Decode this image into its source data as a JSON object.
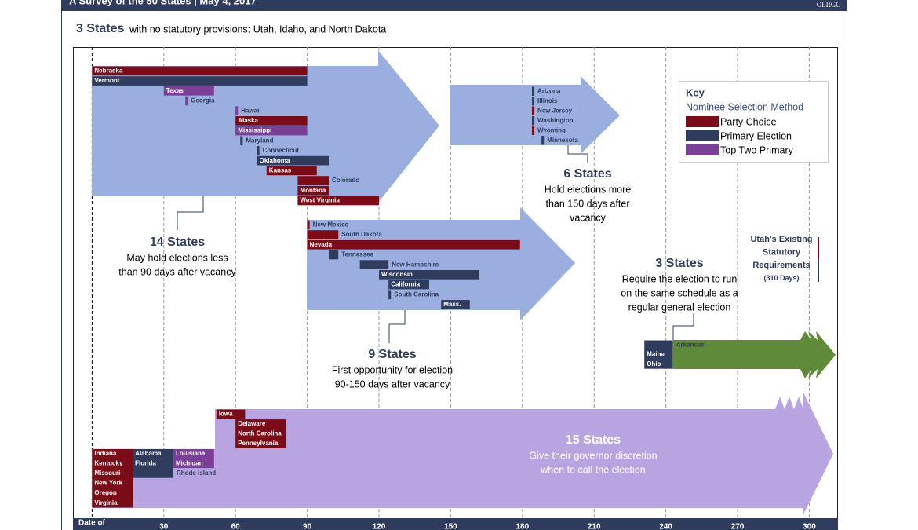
{
  "header": {
    "title": "A Survey of the 50 States  |  May 4, 2017",
    "logo": "OLRGC"
  },
  "subtitle": {
    "count": "3 States",
    "text": "with no statutory provisions: Utah, Idaho, and North Dakota"
  },
  "chart_data": {
    "type": "timeline",
    "x_label": "Date of",
    "xlim": [
      -8,
      312
    ],
    "xticks": [
      30,
      60,
      90,
      120,
      150,
      180,
      210,
      240,
      270,
      300
    ],
    "grid": true,
    "key": {
      "title": "Key",
      "subtitle": "Nominee Selection Method",
      "methods": [
        {
          "name": "Party Choice",
          "color": "#7b0c17"
        },
        {
          "name": "Primary Election",
          "color": "#2f3c5e"
        },
        {
          "name": "Top Two Primary",
          "color": "#7b3f98"
        }
      ]
    },
    "annotation": [
      "Utah's Existing",
      "Statutory",
      "Requirements",
      "(310 Days)"
    ],
    "groups": [
      {
        "count": "14 States",
        "description": [
          "May hold elections less",
          "than 90 days after  vacancy"
        ],
        "entries": [
          {
            "names": [
              "Nebraska"
            ],
            "start": 0,
            "end": 90,
            "method": "Party Choice"
          },
          {
            "names": [
              "Vermont"
            ],
            "start": 0,
            "end": 90,
            "method": "Primary Election"
          },
          {
            "names": [
              "Texas"
            ],
            "start": 30,
            "end": 51,
            "method": "Top Two Primary"
          },
          {
            "names": [
              "Georgia"
            ],
            "start": 39,
            "end": 40,
            "method": "Top Two Primary"
          },
          {
            "names": [
              "Hawaii"
            ],
            "start": 60,
            "end": 61,
            "method": "Top Two Primary"
          },
          {
            "names": [
              "Alaska"
            ],
            "start": 60,
            "end": 90,
            "method": "Party Choice"
          },
          {
            "names": [
              "Mississippi"
            ],
            "start": 60,
            "end": 90,
            "method": "Top Two Primary"
          },
          {
            "names": [
              "Maryland"
            ],
            "start": 62,
            "end": 63,
            "method": "Primary Election"
          },
          {
            "names": [
              "Connecticut"
            ],
            "start": 69,
            "end": 70,
            "method": "Primary Election"
          },
          {
            "names": [
              "Oklahoma"
            ],
            "start": 69,
            "end": 99,
            "method": "Primary Election"
          },
          {
            "names": [
              "Kansas"
            ],
            "start": 73,
            "end": 94,
            "method": "Party Choice"
          },
          {
            "names": [
              "Colorado"
            ],
            "start": 86,
            "end": 99,
            "method": "Party Choice"
          },
          {
            "names": [
              "Montana"
            ],
            "start": 86,
            "end": 99,
            "method": "Party Choice"
          },
          {
            "names": [
              "West Virginia"
            ],
            "start": 86,
            "end": 120,
            "method": "Party Choice"
          }
        ]
      },
      {
        "count": "9 States",
        "description": [
          "First  opportunity for election",
          "90-150 days after vacancy"
        ],
        "entries": [
          {
            "names": [
              "New Mexico"
            ],
            "start": 90,
            "end": 91,
            "method": "Party Choice"
          },
          {
            "names": [
              "South Dakota"
            ],
            "start": 90,
            "end": 103,
            "method": "Party Choice"
          },
          {
            "names": [
              "Nevada"
            ],
            "start": 90,
            "end": 179,
            "method": "Party Choice"
          },
          {
            "names": [
              "Tennessee"
            ],
            "start": 99,
            "end": 103,
            "method": "Primary Election"
          },
          {
            "names": [
              "New Hampshire"
            ],
            "start": 112,
            "end": 124,
            "method": "Primary Election"
          },
          {
            "names": [
              "Wisconsin"
            ],
            "start": 120,
            "end": 162,
            "method": "Primary Election"
          },
          {
            "names": [
              "California"
            ],
            "start": 124,
            "end": 141,
            "method": "Primary Election"
          },
          {
            "names": [
              "South Carolina"
            ],
            "start": 124,
            "end": 125,
            "method": "Primary Election"
          },
          {
            "names": [
              "Mass."
            ],
            "start": 146,
            "end": 158,
            "method": "Primary Election"
          }
        ]
      },
      {
        "count": "6 States",
        "description": [
          "Hold elections more",
          "than 150 days after",
          "vacancy"
        ],
        "entries": [
          {
            "names": [
              "Arizona"
            ],
            "start": 184,
            "end": 185,
            "method": "Primary Election"
          },
          {
            "names": [
              "Illinois"
            ],
            "start": 184,
            "end": 185,
            "method": "Primary Election"
          },
          {
            "names": [
              "New Jersey"
            ],
            "start": 184,
            "end": 185,
            "method": "Party Choice"
          },
          {
            "names": [
              "Washington"
            ],
            "start": 184,
            "end": 185,
            "method": "Primary Election"
          },
          {
            "names": [
              "Wyoming"
            ],
            "start": 184,
            "end": 185,
            "method": "Party Choice"
          },
          {
            "names": [
              "Minnesota"
            ],
            "start": 188,
            "end": 189,
            "method": "Primary Election"
          }
        ]
      },
      {
        "count": "3 States",
        "description": [
          "Require the election to run",
          "on the same schedule as a",
          "regular general election"
        ],
        "entries": [
          {
            "names": [
              "Arkansas",
              "Maine",
              "Ohio"
            ],
            "start": 231,
            "end": 243,
            "method": "Primary Election"
          }
        ]
      },
      {
        "count": "15 States",
        "description": [
          "Give their governor  discretion",
          "when to call the election"
        ],
        "entries": [
          {
            "names": [
              "Iowa"
            ],
            "start": 52,
            "end": 64,
            "method": "Party Choice"
          },
          {
            "names": [
              "Delaware",
              "North Carolina",
              "Pennsylvania"
            ],
            "start": 60,
            "end": 81,
            "method": "Party Choice"
          },
          {
            "names": [
              "Indiana",
              "Kentucky",
              "Missouri",
              "New York",
              "Oregon",
              "Virginia"
            ],
            "start": 0,
            "end": 17,
            "method": "Party Choice"
          },
          {
            "names": [
              "Alabama",
              "Florida",
              "Rhode Island"
            ],
            "start": 17,
            "end": 34,
            "method": "Primary Election"
          },
          {
            "names": [
              "Louisiana",
              "Michigan"
            ],
            "start": 34,
            "end": 51,
            "method": "Top Two Primary"
          }
        ]
      }
    ]
  }
}
